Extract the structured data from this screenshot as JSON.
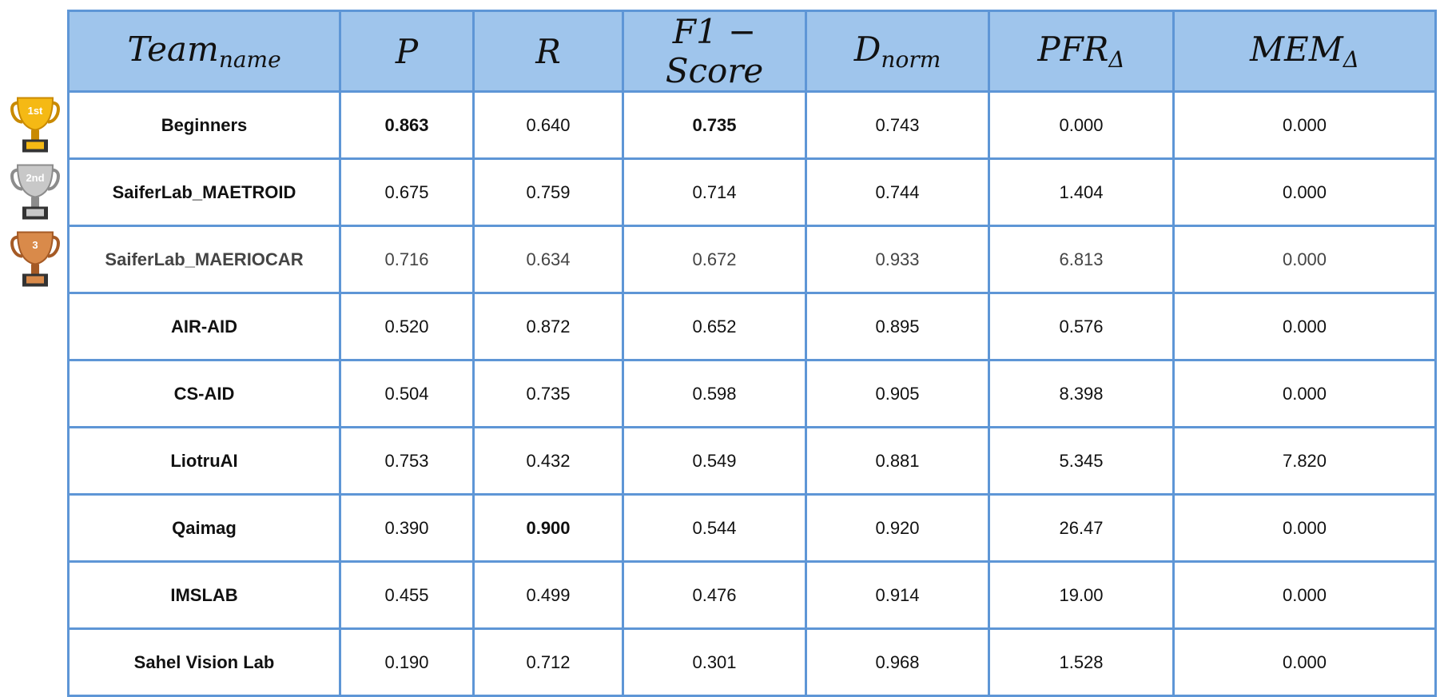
{
  "table": {
    "header": [
      {
        "main": "Team",
        "sub": "name"
      },
      {
        "main": "P"
      },
      {
        "main": "R"
      },
      {
        "main": "F1 − Score"
      },
      {
        "main": "D",
        "sub": "norm"
      },
      {
        "main": "PFR",
        "sub": "Δ"
      },
      {
        "main": "MEM",
        "sub": "Δ"
      }
    ],
    "rows": [
      [
        "Beginners",
        "0.863",
        "0.640",
        "0.735",
        "0.743",
        "0.000",
        "0.000"
      ],
      [
        "SaiferLab_MAETROID",
        "0.675",
        "0.759",
        "0.714",
        "0.744",
        "1.404",
        "0.000"
      ],
      [
        "SaiferLab_MAERIOCAR",
        "0.716",
        "0.634",
        "0.672",
        "0.933",
        "6.813",
        "0.000"
      ],
      [
        "AIR-AID",
        "0.520",
        "0.872",
        "0.652",
        "0.895",
        "0.576",
        "0.000"
      ],
      [
        "CS-AID",
        "0.504",
        "0.735",
        "0.598",
        "0.905",
        "8.398",
        "0.000"
      ],
      [
        "LiotruAI",
        "0.753",
        "0.432",
        "0.549",
        "0.881",
        "5.345",
        "7.820"
      ],
      [
        "Qaimag",
        "0.390",
        "0.900",
        "0.544",
        "0.920",
        "26.47",
        "0.000"
      ],
      [
        "IMSLAB",
        "0.455",
        "0.499",
        "0.476",
        "0.914",
        "19.00",
        "0.000"
      ],
      [
        "Sahel Vision Lab",
        "0.190",
        "0.712",
        "0.301",
        "0.968",
        "1.528",
        "0.000"
      ]
    ]
  },
  "trophies": [
    "1st",
    "2nd",
    "3"
  ]
}
